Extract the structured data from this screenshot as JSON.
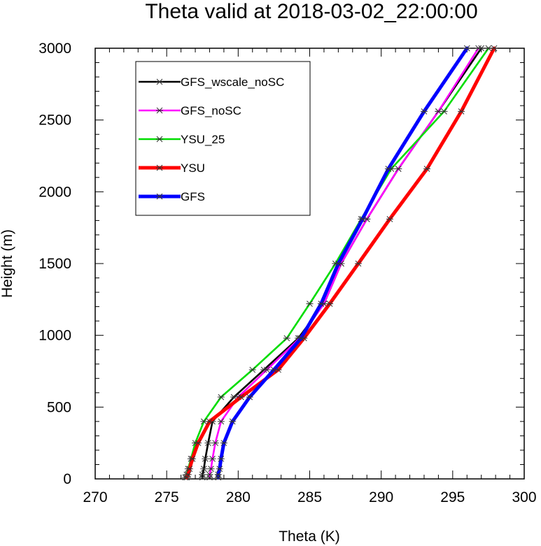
{
  "chart_data": {
    "type": "line",
    "title": "Theta valid at 2018-03-02_22:00:00",
    "xlabel": "Theta (K)",
    "ylabel": "Height (m)",
    "xlim": [
      270,
      300
    ],
    "ylim": [
      0,
      3000
    ],
    "xticks": [
      270,
      275,
      280,
      285,
      290,
      295,
      300
    ],
    "yticks": [
      0,
      500,
      1000,
      1500,
      2000,
      2500,
      3000
    ],
    "grid": false,
    "legend_position": "top-left",
    "series": [
      {
        "name": "GFS_wscale_noSC",
        "color": "#000000",
        "width": "thin",
        "points": [
          [
            277.5,
            10
          ],
          [
            277.5,
            30
          ],
          [
            277.6,
            70
          ],
          [
            277.7,
            140
          ],
          [
            277.9,
            250
          ],
          [
            278.2,
            400
          ],
          [
            279.7,
            570
          ],
          [
            281.8,
            760
          ],
          [
            284.2,
            980
          ],
          [
            286.0,
            1220
          ],
          [
            287.2,
            1500
          ],
          [
            289.0,
            1810
          ],
          [
            291.2,
            2160
          ],
          [
            294.0,
            2560
          ],
          [
            297.0,
            3000
          ]
        ]
      },
      {
        "name": "GFS_noSC",
        "color": "#ff00ff",
        "width": "thin",
        "points": [
          [
            278.0,
            10
          ],
          [
            278.0,
            30
          ],
          [
            278.1,
            70
          ],
          [
            278.2,
            140
          ],
          [
            278.4,
            250
          ],
          [
            278.8,
            400
          ],
          [
            280.0,
            570
          ],
          [
            282.0,
            760
          ],
          [
            284.3,
            980
          ],
          [
            286.0,
            1220
          ],
          [
            287.2,
            1500
          ],
          [
            289.0,
            1810
          ],
          [
            291.2,
            2160
          ],
          [
            294.0,
            2560
          ],
          [
            296.8,
            3000
          ]
        ]
      },
      {
        "name": "YSU_25",
        "color": "#00dd00",
        "width": "thin",
        "points": [
          [
            276.3,
            10
          ],
          [
            276.4,
            30
          ],
          [
            276.5,
            70
          ],
          [
            276.7,
            140
          ],
          [
            277.0,
            250
          ],
          [
            277.6,
            400
          ],
          [
            278.8,
            570
          ],
          [
            281.0,
            760
          ],
          [
            283.4,
            980
          ],
          [
            285.0,
            1220
          ],
          [
            286.8,
            1500
          ],
          [
            288.6,
            1810
          ],
          [
            290.7,
            2160
          ],
          [
            294.4,
            2560
          ],
          [
            297.5,
            3000
          ]
        ]
      },
      {
        "name": "YSU",
        "color": "#ff0000",
        "width": "thick",
        "points": [
          [
            276.4,
            10
          ],
          [
            276.5,
            30
          ],
          [
            276.6,
            70
          ],
          [
            276.8,
            140
          ],
          [
            277.2,
            250
          ],
          [
            278.0,
            400
          ],
          [
            280.2,
            570
          ],
          [
            282.8,
            760
          ],
          [
            284.6,
            980
          ],
          [
            286.4,
            1220
          ],
          [
            288.4,
            1500
          ],
          [
            290.6,
            1810
          ],
          [
            293.2,
            2160
          ],
          [
            295.6,
            2560
          ],
          [
            297.9,
            3000
          ]
        ]
      },
      {
        "name": "GFS",
        "color": "#0000ff",
        "width": "thick",
        "points": [
          [
            278.6,
            10
          ],
          [
            278.6,
            30
          ],
          [
            278.7,
            70
          ],
          [
            278.8,
            140
          ],
          [
            279.0,
            250
          ],
          [
            279.6,
            400
          ],
          [
            280.8,
            570
          ],
          [
            282.5,
            760
          ],
          [
            284.4,
            980
          ],
          [
            285.8,
            1220
          ],
          [
            287.0,
            1500
          ],
          [
            288.7,
            1810
          ],
          [
            290.5,
            2160
          ],
          [
            293.0,
            2560
          ],
          [
            296.0,
            3000
          ]
        ]
      }
    ]
  }
}
